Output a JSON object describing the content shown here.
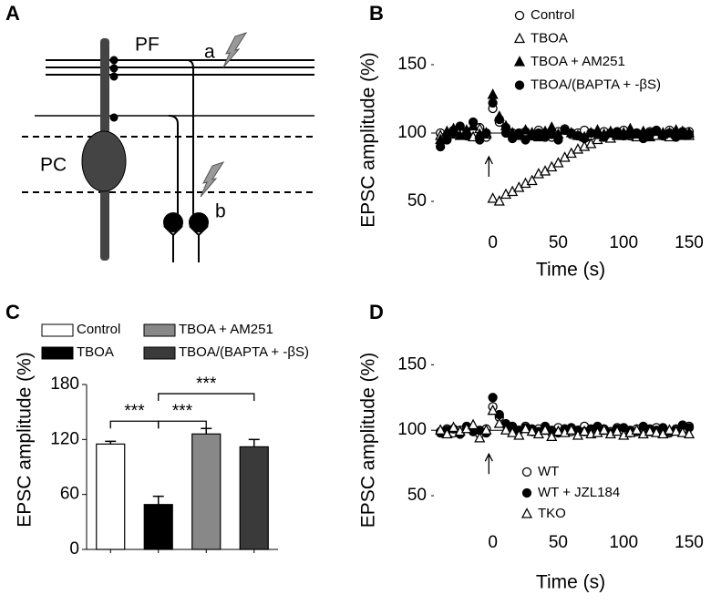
{
  "diagram": {
    "panel": "A",
    "labels": {
      "pf": "PF",
      "a": "a",
      "pc": "PC",
      "b": "b"
    }
  },
  "chart_data": [
    {
      "type": "scatter",
      "panel": "B",
      "xlabel": "Time (s)",
      "ylabel": "EPSC amplitude (%)",
      "xlim": [
        -45,
        150
      ],
      "xticks": [
        0,
        50,
        100,
        150
      ],
      "ylim": [
        30,
        160
      ],
      "yticks": [
        50,
        100,
        150
      ],
      "ref_line": 100,
      "arrow_x": -3,
      "legend": "upper right",
      "x": [
        -40,
        -35,
        -30,
        -25,
        -20,
        -15,
        -10,
        -5,
        0,
        5,
        10,
        15,
        20,
        25,
        30,
        35,
        40,
        45,
        50,
        55,
        60,
        65,
        70,
        75,
        80,
        85,
        90,
        95,
        100,
        105,
        110,
        115,
        120,
        125,
        130,
        135,
        140,
        145,
        150
      ],
      "series": [
        {
          "name": "Control",
          "color": "#000",
          "fill": "#fff",
          "marker": "circle",
          "values": [
            100,
            98,
            102,
            99,
            101,
            100,
            104,
            97,
            118,
            108,
            104,
            100,
            99,
            101,
            98,
            102,
            100,
            97,
            101,
            103,
            99,
            100,
            102,
            98,
            100,
            101,
            99,
            100,
            102,
            98,
            100,
            99,
            101,
            100,
            98,
            102,
            100,
            99,
            101
          ]
        },
        {
          "name": "TBOA",
          "color": "#000",
          "fill": "#fff",
          "marker": "triangle",
          "values": [
            98,
            101,
            99,
            102,
            100,
            97,
            103,
            99,
            52,
            50,
            55,
            57,
            60,
            63,
            65,
            70,
            72,
            75,
            78,
            82,
            85,
            88,
            90,
            92,
            95,
            97,
            96,
            99,
            98,
            100,
            97,
            101,
            99,
            98,
            100,
            97,
            99,
            101,
            98
          ]
        },
        {
          "name": "TBOA + AM251",
          "color": "#000",
          "fill": "#000",
          "marker": "triangle",
          "values": [
            95,
            100,
            103,
            98,
            102,
            105,
            99,
            100,
            128,
            112,
            105,
            100,
            98,
            102,
            100,
            97,
            101,
            104,
            99,
            102,
            100,
            98,
            97,
            100,
            102,
            99,
            101,
            98,
            100,
            103,
            99,
            100,
            97,
            101,
            99,
            100,
            102,
            98,
            100
          ]
        },
        {
          "name": "TBOA/(BAPTA + -βS)",
          "color": "#000",
          "fill": "#000",
          "marker": "circle",
          "values": [
            90,
            95,
            100,
            105,
            98,
            108,
            95,
            100,
            122,
            110,
            100,
            96,
            100,
            95,
            98,
            100,
            97,
            99,
            95,
            102,
            100,
            98,
            96,
            100,
            99,
            97,
            100,
            101,
            98,
            99,
            100,
            96,
            100,
            102,
            98,
            100,
            97,
            101,
            99
          ]
        }
      ]
    },
    {
      "type": "bar",
      "panel": "C",
      "ylabel": "EPSC amplitude (%)",
      "ylim": [
        0,
        180
      ],
      "yticks": [
        0,
        60,
        120,
        180
      ],
      "categories": [
        "Control",
        "TBOA",
        "TBOA + AM251",
        "TBOA/(BAPTA + -βS)"
      ],
      "colors": [
        "#fff",
        "#000",
        "#888",
        "#3a3a3a"
      ],
      "values": [
        115,
        49,
        126,
        112
      ],
      "errors": [
        3,
        9,
        6,
        8
      ],
      "significance": [
        {
          "pair": [
            0,
            1
          ],
          "y": 140,
          "label": "***"
        },
        {
          "pair": [
            1,
            2
          ],
          "y": 140,
          "label": "***"
        },
        {
          "pair": [
            1,
            3
          ],
          "y": 170,
          "label": "***"
        }
      ]
    },
    {
      "type": "scatter",
      "panel": "D",
      "xlabel": "Time (s)",
      "ylabel": "EPSC amplitude (%)",
      "xlim": [
        -45,
        150
      ],
      "xticks": [
        0,
        50,
        100,
        150
      ],
      "ylim": [
        25,
        160
      ],
      "yticks": [
        50,
        100,
        150
      ],
      "ref_line": 100,
      "arrow_x": -3,
      "legend": "lower right",
      "x": [
        -40,
        -35,
        -30,
        -25,
        -20,
        -15,
        -10,
        -5,
        0,
        5,
        10,
        15,
        20,
        25,
        30,
        35,
        40,
        45,
        50,
        55,
        60,
        65,
        70,
        75,
        80,
        85,
        90,
        95,
        100,
        105,
        110,
        115,
        120,
        125,
        130,
        135,
        140,
        145,
        150
      ],
      "series": [
        {
          "name": "WT",
          "color": "#000",
          "fill": "#fff",
          "marker": "circle",
          "values": [
            99,
            101,
            98,
            100,
            102,
            99,
            97,
            101,
            118,
            110,
            104,
            102,
            100,
            103,
            99,
            101,
            100,
            98,
            102,
            101,
            99,
            100,
            103,
            98,
            100,
            101,
            99,
            102,
            100,
            98,
            101,
            100,
            99,
            102,
            100,
            98,
            101,
            100,
            103
          ]
        },
        {
          "name": "WT + JZL184",
          "color": "#000",
          "fill": "#000",
          "marker": "circle",
          "values": [
            98,
            100,
            101,
            97,
            103,
            99,
            100,
            98,
            125,
            112,
            105,
            103,
            100,
            102,
            101,
            99,
            103,
            100,
            98,
            101,
            102,
            100,
            99,
            101,
            103,
            100,
            98,
            101,
            102,
            100,
            99,
            103,
            101,
            100,
            102,
            99,
            100,
            104,
            102
          ]
        },
        {
          "name": "TKO",
          "color": "#000",
          "fill": "#fff",
          "marker": "triangle",
          "values": [
            100,
            97,
            102,
            99,
            101,
            104,
            94,
            100,
            115,
            105,
            100,
            98,
            96,
            101,
            99,
            97,
            100,
            95,
            99,
            98,
            100,
            96,
            99,
            97,
            98,
            100,
            97,
            99,
            96,
            98,
            100,
            97,
            99,
            98,
            97,
            100,
            99,
            98,
            97
          ]
        }
      ]
    }
  ]
}
